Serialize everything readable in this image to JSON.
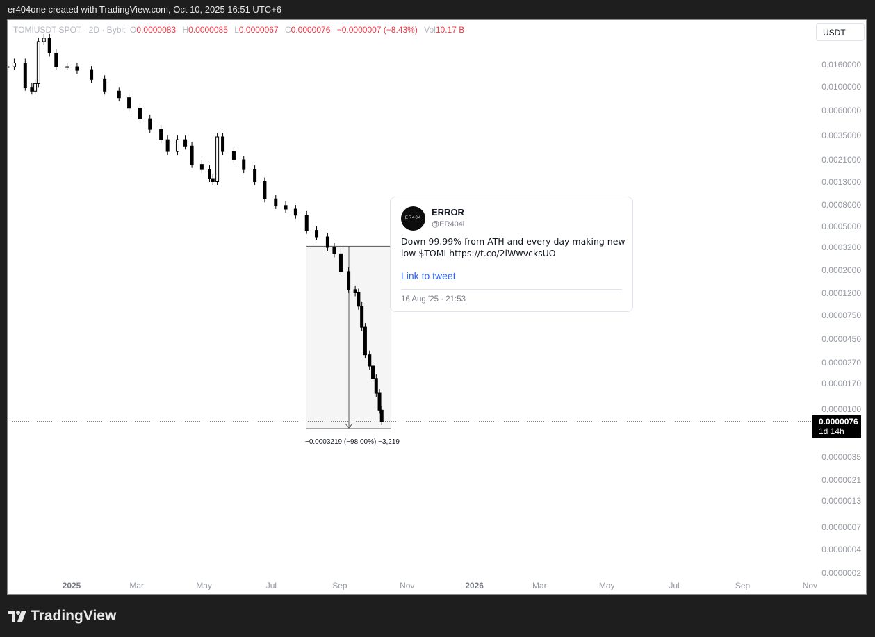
{
  "caption": "er404one created with TradingView.com, Oct 10, 2025 16:51 UTC+6",
  "legend": {
    "symbol": "TOMIUSDT SPOT · 2D · Bybit",
    "open_label": "O",
    "open": "0.0000083",
    "high_label": "H",
    "high": "0.0000085",
    "low_label": "L",
    "low": "0.0000067",
    "close_label": "C",
    "close": "0.0000076",
    "change": "−0.0000007 (−8.43%)",
    "vol_label": "Vol",
    "vol": "10.17 B"
  },
  "currency_button": "USDT",
  "last_price": {
    "price": "0.0000076",
    "countdown": "1d 14h"
  },
  "measure": {
    "label": "−0.0003219 (−98.00%) −3,219"
  },
  "tweet": {
    "avatar_text": "ER404",
    "name": "ERROR",
    "handle": "@ER404i",
    "text": "Down 99.99% from ATH and every day making new low $TOMI https://t.co/2lWwvcksUO",
    "link": "Link to tweet",
    "date": "16 Aug '25 · 21:53"
  },
  "brand": "TradingView",
  "colors": {
    "down": "#f23645",
    "candle": "#000000",
    "link": "#2962ff",
    "measure_bg": "#f5f5f5"
  },
  "chart_data": {
    "type": "candlestick",
    "scale": "log",
    "y_ticks": [
      "0.0160000",
      "0.0100000",
      "0.0060000",
      "0.0035000",
      "0.0021000",
      "0.0013000",
      "0.0008000",
      "0.0005000",
      "0.0003200",
      "0.0002000",
      "0.0001200",
      "0.0000750",
      "0.0000450",
      "0.0000270",
      "0.0000170",
      "0.0000100",
      "0.0000035",
      "0.0000021",
      "0.0000013",
      "0.0000007",
      "0.0000004",
      "0.0000002"
    ],
    "x_ticks": [
      "2025",
      "Mar",
      "May",
      "Jul",
      "Sep",
      "Nov",
      "2026",
      "Mar",
      "May",
      "Jul",
      "Sep",
      "Nov"
    ],
    "x_tick_dates": [
      "2025-01-01",
      "2025-03-01",
      "2025-05-01",
      "2025-07-01",
      "2025-09-01",
      "2025-11-01",
      "2026-01-01",
      "2026-03-01",
      "2026-05-01",
      "2026-07-01",
      "2026-09-01",
      "2026-11-01"
    ],
    "closes": [
      [
        "2024-11-04",
        0.0153
      ],
      [
        "2024-11-10",
        0.0166
      ],
      [
        "2024-11-20",
        0.0099
      ],
      [
        "2024-11-26",
        0.0091
      ],
      [
        "2024-11-29",
        0.0107
      ],
      [
        "2024-12-02",
        0.026
      ],
      [
        "2024-12-07",
        0.028
      ],
      [
        "2024-12-12",
        0.0204
      ],
      [
        "2024-12-18",
        0.0153
      ],
      [
        "2024-12-28",
        0.0153
      ],
      [
        "2025-01-06",
        0.0142
      ],
      [
        "2025-01-19",
        0.0117
      ],
      [
        "2025-01-31",
        0.0091
      ],
      [
        "2025-02-13",
        0.0079
      ],
      [
        "2025-02-22",
        0.0063
      ],
      [
        "2025-03-04",
        0.005
      ],
      [
        "2025-03-13",
        0.004
      ],
      [
        "2025-03-23",
        0.0032
      ],
      [
        "2025-03-29",
        0.0025
      ],
      [
        "2025-04-07",
        0.0032
      ],
      [
        "2025-04-14",
        0.0028
      ],
      [
        "2025-04-20",
        0.0019
      ],
      [
        "2025-04-29",
        0.0017
      ],
      [
        "2025-05-06",
        0.0014
      ],
      [
        "2025-05-09",
        0.00131
      ],
      [
        "2025-05-13",
        0.0034
      ],
      [
        "2025-05-18",
        0.0025
      ],
      [
        "2025-05-28",
        0.0021
      ],
      [
        "2025-06-06",
        0.0017
      ],
      [
        "2025-06-16",
        0.00131
      ],
      [
        "2025-06-25",
        0.00091
      ],
      [
        "2025-07-05",
        0.00079
      ],
      [
        "2025-07-14",
        0.00073
      ],
      [
        "2025-07-23",
        0.00064
      ],
      [
        "2025-08-02",
        0.00046
      ],
      [
        "2025-08-11",
        0.0004
      ],
      [
        "2025-08-21",
        0.00032
      ],
      [
        "2025-08-27",
        0.00028
      ],
      [
        "2025-09-02",
        0.000194
      ],
      [
        "2025-09-09",
        0.00013
      ],
      [
        "2025-09-15",
        0.000121
      ],
      [
        "2025-09-18",
        9.1e-05
      ],
      [
        "2025-09-21",
        5.8e-05
      ],
      [
        "2025-09-24",
        3.2e-05
      ],
      [
        "2025-09-28",
        2.5e-05
      ],
      [
        "2025-10-01",
        1.9e-05
      ],
      [
        "2025-10-04",
        1.39e-05
      ],
      [
        "2025-10-07",
        9.8e-06
      ],
      [
        "2025-10-09",
        7.6e-06
      ]
    ],
    "last": 7.6e-06,
    "measure_from": 0.000328,
    "measure_to": 6.1e-06
  }
}
